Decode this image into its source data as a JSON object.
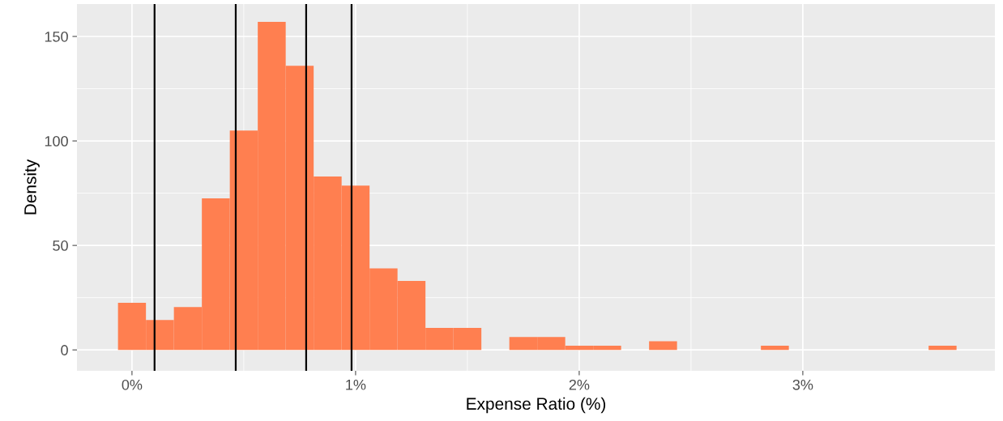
{
  "chart_data": {
    "type": "histogram",
    "xlabel": "Expense Ratio (%)",
    "ylabel": "Density",
    "color": "#ff7f50",
    "bins": [
      -0.0625,
      0.0625,
      0.1875,
      0.3125,
      0.4375,
      0.5625,
      0.6875,
      0.8125,
      0.9375,
      1.0625,
      1.1875,
      1.3125,
      1.4375,
      1.5625,
      1.6875,
      1.8125,
      1.9375,
      2.0625,
      2.1875,
      2.3125,
      2.4375,
      2.5625,
      2.6875,
      2.8125,
      2.9375,
      3.0625,
      3.1875,
      3.3125,
      3.4375,
      3.5625,
      3.6875
    ],
    "values": [
      22.5,
      14.3,
      20.5,
      72.5,
      105,
      157,
      136,
      83,
      78.6,
      39,
      33,
      10.5,
      10.5,
      0,
      6.2,
      6.2,
      2,
      2,
      0,
      4.1,
      0,
      0,
      0,
      2,
      0,
      0,
      0,
      0,
      0,
      2
    ],
    "xlim": [
      -0.246,
      3.859
    ],
    "ylim": [
      -10,
      165.5
    ],
    "xticks": [
      {
        "value": 0,
        "label": "0%"
      },
      {
        "value": 1,
        "label": "1%"
      },
      {
        "value": 2,
        "label": "2%"
      },
      {
        "value": 3,
        "label": "3%"
      }
    ],
    "yticks": [
      0,
      50,
      100,
      150
    ],
    "grid": true,
    "ref_lines": [
      {
        "axis": "x",
        "value": 0.101,
        "color": "#000000"
      },
      {
        "axis": "x",
        "value": 0.464,
        "color": "#000000"
      },
      {
        "axis": "x",
        "value": 0.779,
        "color": "#000000"
      },
      {
        "axis": "x",
        "value": 0.982,
        "color": "#000000"
      }
    ]
  }
}
